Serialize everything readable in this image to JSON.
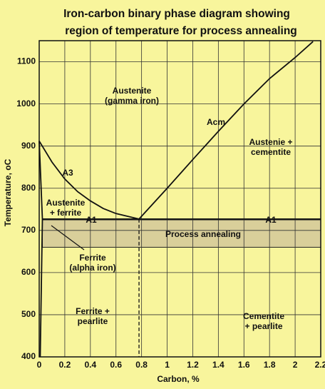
{
  "chart_data": {
    "type": "line",
    "title": [
      "Iron-carbon binary phase diagram showing",
      "region of temperature for process annealing"
    ],
    "x_label": "Carbon, %",
    "y_label": "Temperature, oC",
    "xlim": [
      0,
      2.2
    ],
    "ylim": [
      400,
      1150
    ],
    "xticks": [
      0,
      0.2,
      0.4,
      0.6,
      0.8,
      1,
      1.2,
      1.4,
      1.6,
      1.8,
      2,
      2.2
    ],
    "yticks": [
      400,
      500,
      600,
      700,
      800,
      900,
      1000,
      1100
    ],
    "grid": true,
    "color": "#111111",
    "series": [
      {
        "name": "A3",
        "x": [
          0,
          0.1,
          0.2,
          0.3,
          0.4,
          0.5,
          0.6,
          0.78
        ],
        "values": [
          912,
          862,
          822,
          792,
          770,
          752,
          740,
          727
        ]
      },
      {
        "name": "Acm",
        "x": [
          0.78,
          1,
          1.2,
          1.4,
          1.6,
          1.8,
          2,
          2.14
        ],
        "values": [
          727,
          800,
          868,
          935,
          1000,
          1060,
          1110,
          1148
        ]
      },
      {
        "name": "A1",
        "x": [
          0.025,
          2.2
        ],
        "values": [
          727,
          727
        ]
      },
      {
        "x": [
          0,
          0.025,
          0.008
        ],
        "values": [
          912,
          727,
          400
        ]
      }
    ],
    "eutectoid_line": {
      "x": 0.78,
      "y": [
        727,
        400
      ]
    },
    "band": {
      "label": "Process annealing",
      "x": [
        0.025,
        2.2
      ],
      "y": [
        660,
        725
      ],
      "color": "#d9cf9a"
    },
    "annotations": [
      {
        "lines": [
          "Austenite",
          "(gamma iron)"
        ]
      },
      {
        "lines": [
          "Austenie +",
          "cementite"
        ]
      },
      {
        "lines": [
          "Austenite",
          "+ ferrite"
        ]
      },
      {
        "lines": [
          "Ferrite",
          "(alpha iron)"
        ]
      },
      {
        "lines": [
          "Ferrite +",
          "pearlite"
        ]
      },
      {
        "lines": [
          "Cementite",
          "+ pearlite"
        ]
      }
    ]
  }
}
